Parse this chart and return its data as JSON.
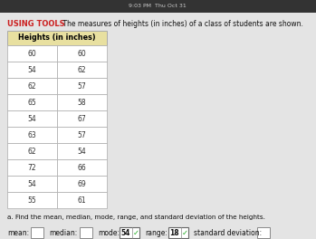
{
  "title_tool": "USING TOOLS",
  "title_text": " The measures of heights (in inches) of a class of students are shown.",
  "table_header": "Heights (in inches)",
  "table_col1": [
    60,
    54,
    62,
    65,
    54,
    63,
    62,
    72,
    54,
    55
  ],
  "table_col2": [
    60,
    62,
    57,
    58,
    67,
    57,
    54,
    66,
    69,
    61
  ],
  "question": "a. Find the mean, median, mode, range, and standard deviation of the heights.",
  "label_mean": "mean:",
  "label_median": "median:",
  "label_mode": "mode:",
  "mode_value": "54",
  "label_range": "range:",
  "range_value": "18",
  "label_std": "standard deviation:",
  "header_bg": "#e8e0a0",
  "row_bg": "#ffffff",
  "table_border": "#aaaaaa",
  "bg_color": "#d8d8d8",
  "page_color": "#e8e8e8",
  "top_bar_color": "#333333",
  "top_bar_text": "9:03 PM  Thu Oct 31",
  "check_color": "#22aa22",
  "title_tool_color": "#cc2222",
  "title_text_color": "#111111",
  "timestamp_color": "#cccccc"
}
